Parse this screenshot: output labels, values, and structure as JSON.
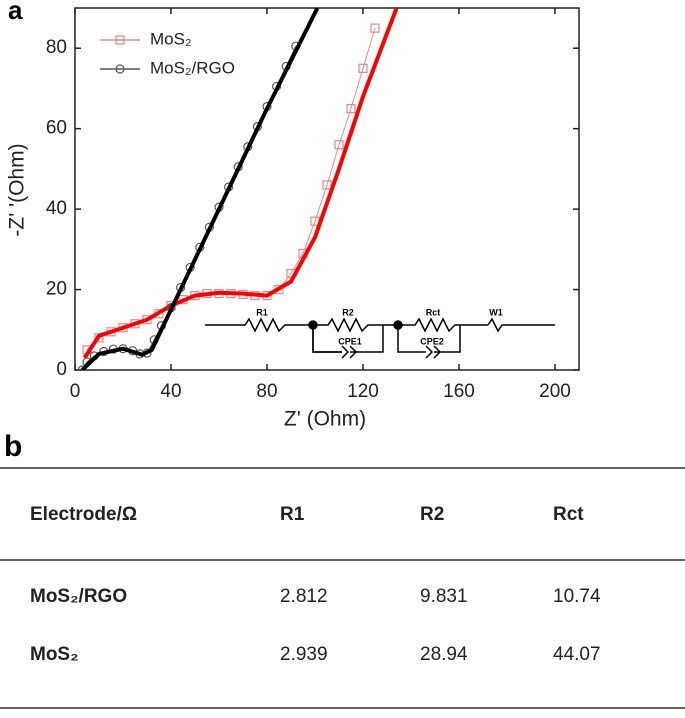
{
  "chart_data": {
    "type": "scatter",
    "panel_label": "a",
    "x_label": "Z' (Ohm)",
    "y_label": "-Z' '(Ohm)",
    "xlim": [
      0,
      210
    ],
    "ylim": [
      0,
      90
    ],
    "xticks": [
      0,
      40,
      80,
      120,
      160,
      200
    ],
    "yticks": [
      0,
      20,
      40,
      60,
      80
    ],
    "legend": "upper left",
    "series": [
      {
        "name": "MoS₂",
        "color": "#e88888",
        "fit_color": "#ff0000",
        "marker": "square",
        "x": [
          5,
          10,
          15,
          20,
          25,
          30,
          35,
          40,
          45,
          50,
          55,
          60,
          65,
          70,
          75,
          80,
          85,
          90,
          95,
          100,
          105,
          110,
          115,
          120,
          125
        ],
        "values": [
          5,
          8,
          9.5,
          10.5,
          11.5,
          12.5,
          14,
          16,
          17.5,
          18.5,
          19,
          19,
          19,
          18.8,
          18.5,
          18.5,
          20,
          24,
          29,
          37,
          46,
          56,
          65,
          75,
          85
        ],
        "fit": {
          "x": [
            4,
            10,
            20,
            30,
            40,
            50,
            60,
            70,
            80,
            90,
            100,
            110,
            120,
            134
          ],
          "values": [
            3,
            8.5,
            10.5,
            12.5,
            16,
            18.5,
            19.2,
            19,
            18.5,
            22,
            33,
            50,
            68,
            90
          ]
        }
      },
      {
        "name": "MoS₂/RGO",
        "color": "#555555",
        "fit_color": "#000000",
        "marker": "circle",
        "x": [
          3,
          5,
          8,
          12,
          16,
          20,
          24,
          27,
          30,
          33,
          36,
          40,
          44,
          48,
          52,
          56,
          60,
          64,
          68,
          72,
          76,
          80,
          84,
          88,
          92
        ],
        "values": [
          0,
          2,
          3.5,
          4.6,
          5.2,
          5.3,
          4.8,
          4,
          4.2,
          7.5,
          11,
          15.5,
          20.5,
          25.5,
          30.5,
          35.5,
          40.5,
          45.5,
          50.5,
          55.5,
          60.5,
          65.5,
          70.5,
          75.5,
          80.5
        ],
        "fit": {
          "x": [
            3,
            10,
            20,
            28,
            32,
            40,
            60,
            80,
            101
          ],
          "values": [
            0,
            4,
            5.3,
            3.8,
            5,
            15,
            40,
            65,
            90
          ]
        }
      }
    ],
    "circuit_labels": [
      "R1",
      "R2",
      "Rct",
      "W1",
      "CPE1",
      "CPE2"
    ]
  },
  "table": {
    "panel_label": "b",
    "header": [
      "Electrode/Ω",
      "R1",
      "R2",
      "Rct"
    ],
    "rows": [
      [
        "MoS₂/RGO",
        2.812,
        9.831,
        10.74
      ],
      [
        "MoS₂",
        2.939,
        28.94,
        44.07
      ]
    ]
  }
}
